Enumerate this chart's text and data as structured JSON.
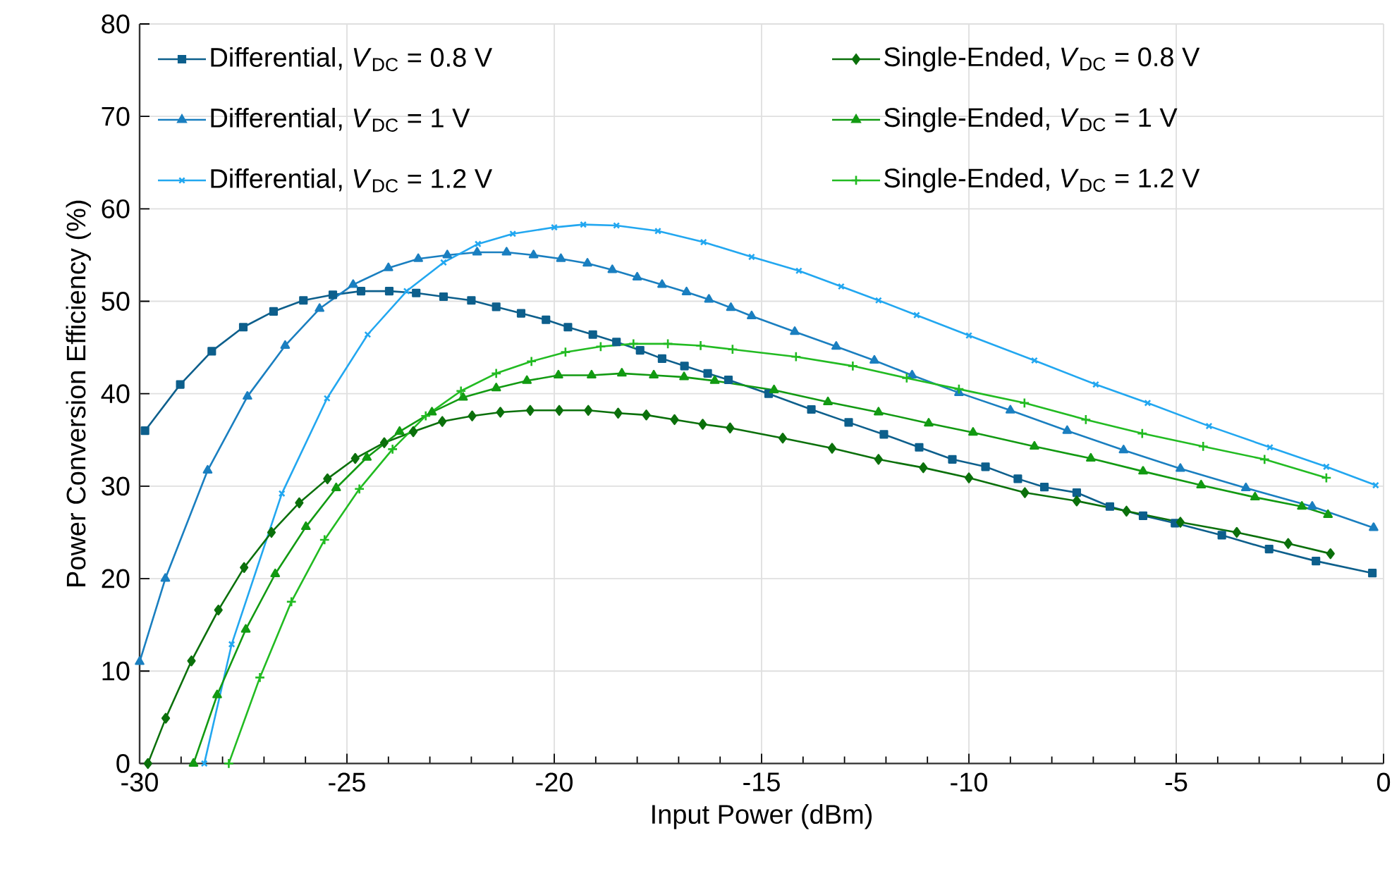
{
  "chart_data": {
    "type": "line",
    "xlabel": "Input Power (dBm)",
    "ylabel": "Power Conversion Efficiency (%)",
    "xlim": [
      -30,
      0
    ],
    "ylim": [
      0,
      80
    ],
    "xticks": [
      -30,
      -25,
      -20,
      -15,
      -10,
      -5,
      0
    ],
    "yticks": [
      0,
      10,
      20,
      30,
      40,
      50,
      60,
      70,
      80
    ],
    "grid": true,
    "legend": "top",
    "series": [
      {
        "name": "Differential, *V*$_{DC}$ = 0.8 V",
        "color": "#0d5f8c",
        "marker": "square",
        "x": [
          -29.87,
          -29.02,
          -28.26,
          -27.5,
          -26.77,
          -26.05,
          -25.34,
          -24.66,
          -23.98,
          -23.33,
          -22.67,
          -22.0,
          -21.4,
          -20.8,
          -20.2,
          -19.67,
          -19.07,
          -18.5,
          -17.93,
          -17.4,
          -16.86,
          -16.3,
          -15.8,
          -14.83,
          -13.8,
          -12.9,
          -12.05,
          -11.2,
          -10.4,
          -9.6,
          -8.82,
          -8.18,
          -7.4,
          -6.6,
          -5.8,
          -5.03,
          -3.9,
          -2.76,
          -1.63,
          -0.27
        ],
        "values": [
          36.0,
          41.0,
          44.6,
          47.2,
          48.9,
          50.1,
          50.7,
          51.1,
          51.1,
          50.9,
          50.5,
          50.1,
          49.4,
          48.7,
          48.0,
          47.2,
          46.4,
          45.6,
          44.7,
          43.8,
          43.0,
          42.2,
          41.5,
          40.0,
          38.3,
          36.9,
          35.6,
          34.2,
          32.9,
          32.1,
          30.8,
          29.9,
          29.3,
          27.8,
          26.8,
          26.0,
          24.7,
          23.2,
          21.9,
          20.6
        ]
      },
      {
        "name": "Differential, *V*$_{DC}$ = 1 V",
        "color": "#1a7fc0",
        "marker": "triangle",
        "x": [
          -30,
          -29.38,
          -28.36,
          -27.4,
          -26.49,
          -25.66,
          -24.85,
          -24.0,
          -23.28,
          -22.58,
          -21.86,
          -21.15,
          -20.5,
          -19.84,
          -19.2,
          -18.6,
          -18.0,
          -17.4,
          -16.81,
          -16.27,
          -15.74,
          -15.24,
          -14.2,
          -13.2,
          -12.28,
          -11.37,
          -10.24,
          -9.0,
          -7.63,
          -6.27,
          -4.9,
          -3.32,
          -1.72,
          -0.24
        ],
        "values": [
          11.0,
          20.0,
          31.7,
          39.7,
          45.2,
          49.2,
          51.8,
          53.6,
          54.6,
          55.0,
          55.3,
          55.3,
          55.0,
          54.6,
          54.1,
          53.4,
          52.6,
          51.8,
          51.0,
          50.2,
          49.3,
          48.4,
          46.7,
          45.1,
          43.6,
          42.0,
          40.1,
          38.2,
          36.0,
          33.9,
          31.9,
          29.8,
          27.8,
          25.5
        ]
      },
      {
        "name": "Differential, *V*$_{DC}$ = 1.2 V",
        "color": "#22a7f0",
        "marker": "cross",
        "x": [
          -28.44,
          -27.78,
          -26.57,
          -25.48,
          -24.5,
          -23.56,
          -22.67,
          -21.84,
          -21.0,
          -20.0,
          -19.3,
          -18.5,
          -17.5,
          -16.4,
          -15.24,
          -14.1,
          -13.08,
          -12.18,
          -11.26,
          -10.0,
          -8.42,
          -6.94,
          -5.69,
          -4.21,
          -2.74,
          -1.38,
          -0.19
        ],
        "values": [
          0,
          12.9,
          29.2,
          39.5,
          46.4,
          51.1,
          54.2,
          56.2,
          57.3,
          58.0,
          58.3,
          58.2,
          57.6,
          56.4,
          54.8,
          53.3,
          51.6,
          50.1,
          48.5,
          46.3,
          43.6,
          41.0,
          39.0,
          36.5,
          34.2,
          32.1,
          30.1
        ]
      },
      {
        "name": "Single-Ended, *V*$_{DC}$ = 0.8 V",
        "color": "#0b700b",
        "marker": "diamond",
        "x": [
          -29.8,
          -29.37,
          -28.75,
          -28.1,
          -27.48,
          -26.82,
          -26.15,
          -25.47,
          -24.8,
          -24.1,
          -23.4,
          -22.7,
          -21.98,
          -21.3,
          -20.58,
          -19.88,
          -19.18,
          -18.46,
          -17.78,
          -17.1,
          -16.42,
          -15.76,
          -14.49,
          -13.3,
          -12.18,
          -11.1,
          -10.0,
          -8.65,
          -7.4,
          -6.2,
          -4.9,
          -3.54,
          -2.3,
          -1.28
        ],
        "values": [
          0,
          4.9,
          11.1,
          16.6,
          21.2,
          25.0,
          28.2,
          30.8,
          33.0,
          34.7,
          35.9,
          37.0,
          37.6,
          38.0,
          38.2,
          38.2,
          38.2,
          37.9,
          37.7,
          37.2,
          36.7,
          36.3,
          35.2,
          34.1,
          32.9,
          32.0,
          30.9,
          29.3,
          28.4,
          27.3,
          26.1,
          25.0,
          23.8,
          22.7
        ]
      },
      {
        "name": "Single-Ended, *V*$_{DC}$ = 1 V",
        "color": "#129a12",
        "marker": "triangle-down",
        "x": [
          -28.7,
          -28.13,
          -27.44,
          -26.73,
          -25.99,
          -25.26,
          -24.52,
          -23.73,
          -22.95,
          -22.2,
          -21.4,
          -20.66,
          -19.9,
          -19.1,
          -18.37,
          -17.6,
          -16.87,
          -16.13,
          -14.7,
          -13.4,
          -12.18,
          -10.97,
          -9.9,
          -8.42,
          -7.06,
          -5.8,
          -4.4,
          -3.1,
          -1.97,
          -1.34
        ],
        "values": [
          0,
          7.4,
          14.5,
          20.5,
          25.6,
          29.8,
          33.1,
          35.9,
          38.0,
          39.6,
          40.6,
          41.4,
          42.0,
          42.0,
          42.2,
          42.0,
          41.8,
          41.4,
          40.4,
          39.1,
          38.0,
          36.8,
          35.8,
          34.3,
          33.0,
          31.6,
          30.1,
          28.8,
          27.8,
          26.9
        ]
      },
      {
        "name": "Single-Ended, *V*$_{DC}$ = 1.2 V",
        "color": "#22bb22",
        "marker": "plus",
        "x": [
          -27.85,
          -27.1,
          -26.34,
          -25.54,
          -24.7,
          -23.9,
          -23.1,
          -22.25,
          -21.4,
          -20.55,
          -19.73,
          -18.88,
          -18.09,
          -17.26,
          -16.47,
          -15.7,
          -14.17,
          -12.8,
          -11.5,
          -10.24,
          -8.66,
          -7.18,
          -5.82,
          -4.35,
          -2.87,
          -1.38
        ],
        "values": [
          0,
          9.3,
          17.5,
          24.2,
          29.7,
          34.0,
          37.6,
          40.3,
          42.2,
          43.5,
          44.5,
          45.1,
          45.4,
          45.4,
          45.2,
          44.8,
          44.0,
          43.0,
          41.7,
          40.5,
          39.0,
          37.2,
          35.7,
          34.3,
          32.9,
          30.9
        ]
      }
    ]
  }
}
